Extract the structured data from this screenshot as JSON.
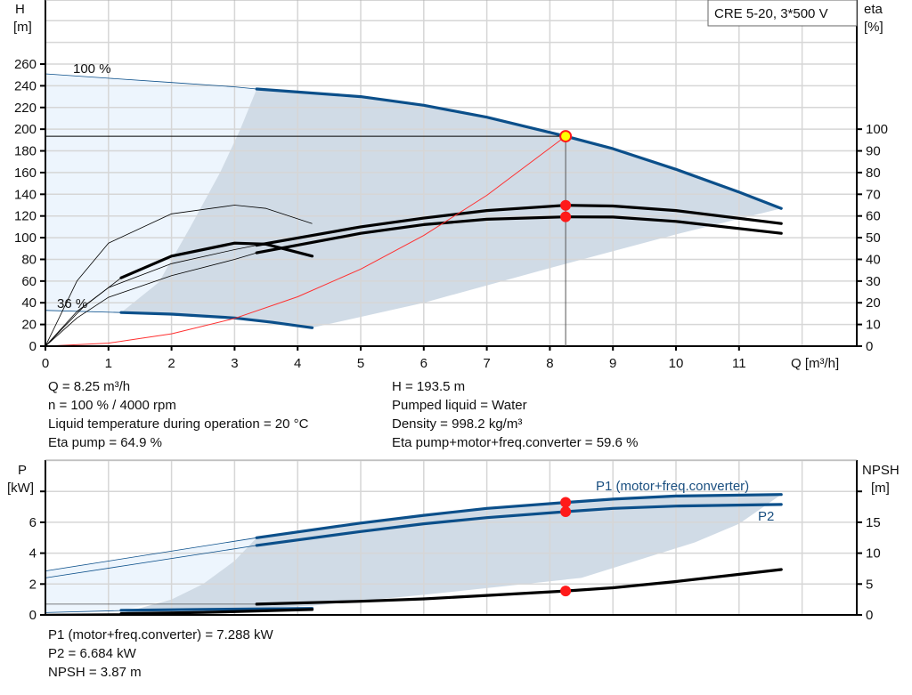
{
  "chart_data": [
    {
      "type": "line",
      "title_box": "CRE 5-20, 3*500 V",
      "xlabel": "Q [m³/h]",
      "ylabel_left": [
        "H",
        "[m]"
      ],
      "ylabel_right": [
        "eta",
        "[%]"
      ],
      "xlim": [
        0,
        12.8
      ],
      "ylim_left": [
        0,
        320
      ],
      "ylim_right": [
        0,
        160
      ],
      "x_ticks": [
        0,
        1,
        2,
        3,
        4,
        5,
        6,
        7,
        8,
        9,
        10,
        11
      ],
      "y_ticks_left": [
        0,
        20,
        40,
        60,
        80,
        100,
        120,
        140,
        160,
        180,
        200,
        220,
        240,
        260
      ],
      "y_ticks_right": [
        0,
        10,
        20,
        30,
        40,
        50,
        60,
        70,
        80,
        90,
        100
      ],
      "grid": true,
      "annotations": [
        "100 %",
        "36 %"
      ],
      "series": [
        {
          "id": "h-100",
          "axis": "left",
          "color": "#0b4f8a",
          "thin": [
            [
              0,
              251
            ],
            [
              1,
              247
            ],
            [
              2,
              243
            ],
            [
              3,
              239
            ],
            [
              3.35,
              237
            ]
          ],
          "thick": [
            [
              3.35,
              237
            ],
            [
              5,
              230
            ],
            [
              6,
              222
            ],
            [
              7,
              211
            ],
            [
              8,
              197
            ],
            [
              8.25,
              193.5
            ],
            [
              9,
              182
            ],
            [
              10,
              163
            ],
            [
              11,
              142
            ],
            [
              11.67,
              127
            ]
          ]
        },
        {
          "id": "h-36",
          "axis": "left",
          "color": "#0b4f8a",
          "thin": [
            [
              0,
              33
            ],
            [
              1.2,
              31
            ]
          ],
          "thick": [
            [
              1.2,
              31
            ],
            [
              2,
              29.5
            ],
            [
              3,
              26
            ],
            [
              3.6,
              22
            ],
            [
              4.23,
              17
            ]
          ]
        },
        {
          "id": "eta-pump-100",
          "axis": "right",
          "color": "#000000",
          "thin": [
            [
              0,
              0
            ],
            [
              0.5,
              16
            ],
            [
              1,
              27
            ],
            [
              2,
              38
            ],
            [
              3,
              44.5
            ],
            [
              3.35,
              46.5
            ]
          ],
          "thick": [
            [
              3.35,
              46.5
            ],
            [
              5,
              55
            ],
            [
              6,
              59
            ],
            [
              7,
              62.5
            ],
            [
              8.25,
              64.9
            ],
            [
              9,
              64.6
            ],
            [
              10,
              62.5
            ],
            [
              11.67,
              56.5
            ]
          ]
        },
        {
          "id": "eta-total-100",
          "axis": "right",
          "color": "#000000",
          "thin": [
            [
              0,
              0
            ],
            [
              0.5,
              13
            ],
            [
              1,
              22.5
            ],
            [
              2,
              32.5
            ],
            [
              3,
              40
            ],
            [
              3.35,
              43
            ]
          ],
          "thick": [
            [
              3.35,
              43
            ],
            [
              5,
              52
            ],
            [
              6,
              56
            ],
            [
              7,
              58.5
            ],
            [
              8.25,
              59.6
            ],
            [
              9,
              59.5
            ],
            [
              10,
              57.5
            ],
            [
              11.67,
              52
            ]
          ]
        },
        {
          "id": "eta-pump-36",
          "axis": "right",
          "color": "#000000",
          "thin": [
            [
              0,
              0
            ],
            [
              0.5,
              30
            ],
            [
              1,
              47.5
            ],
            [
              2,
              61
            ],
            [
              3,
              65
            ],
            [
              3.5,
              63.5
            ],
            [
              4.23,
              56.5
            ]
          ],
          "thick": []
        },
        {
          "id": "eta-total-36",
          "axis": "right",
          "color": "#000000",
          "thin": [
            [
              0,
              0
            ],
            [
              0.6,
              18
            ],
            [
              1.2,
              31.5
            ]
          ],
          "thick": [
            [
              1.2,
              31.5
            ],
            [
              2,
              41.5
            ],
            [
              3,
              47.5
            ],
            [
              3.5,
              47
            ],
            [
              4.23,
              41.5
            ]
          ]
        },
        {
          "id": "system-curve",
          "axis": "left",
          "color": "#ff3030",
          "thin": [
            [
              0,
              0
            ],
            [
              1,
              2.8
            ],
            [
              2,
              11.4
            ],
            [
              3,
              25.6
            ],
            [
              4,
              45.5
            ],
            [
              5,
              71
            ],
            [
              6,
              102
            ],
            [
              7,
              139
            ],
            [
              8.25,
              193.5
            ]
          ],
          "thick": []
        }
      ],
      "operating_point": {
        "Q": 8.25,
        "H": 193.5,
        "eta_pump": 64.9,
        "eta_total": 59.6
      },
      "region_dark": [
        [
          3.35,
          237
        ],
        [
          5,
          230
        ],
        [
          6,
          222
        ],
        [
          7,
          211
        ],
        [
          8,
          197
        ],
        [
          9,
          182
        ],
        [
          10,
          163
        ],
        [
          11,
          142
        ],
        [
          11.67,
          127
        ],
        [
          10,
          103
        ],
        [
          8,
          72
        ],
        [
          6,
          40
        ],
        [
          4.23,
          17
        ],
        [
          3,
          26
        ],
        [
          2,
          29.5
        ],
        [
          1.2,
          31
        ],
        [
          1.8,
          59
        ],
        [
          2.3,
          110
        ],
        [
          2.77,
          160
        ],
        [
          3.09,
          200
        ]
      ],
      "region_light": [
        [
          0,
          251
        ],
        [
          3.35,
          237
        ],
        [
          3.09,
          200
        ],
        [
          2.77,
          160
        ],
        [
          2.3,
          110
        ],
        [
          1.8,
          59
        ],
        [
          1.2,
          31
        ],
        [
          0,
          33
        ]
      ]
    },
    {
      "type": "line",
      "xlim": [
        0,
        12.8
      ],
      "ylabel_left": [
        "P",
        "[kW]"
      ],
      "ylabel_right": [
        "NPSH",
        "[m]"
      ],
      "ylim_left": [
        0,
        10
      ],
      "ylim_right": [
        0,
        25
      ],
      "y_ticks_left": [
        0,
        2,
        4,
        6,
        8
      ],
      "y_tick_labels_left": [
        "0",
        "2",
        "4",
        "6",
        ""
      ],
      "y_ticks_right": [
        0,
        5,
        10,
        15,
        20
      ],
      "y_tick_labels_right": [
        "0",
        "5",
        "10",
        "15",
        ""
      ],
      "grid": true,
      "series": [
        {
          "id": "p1",
          "name": "P1 (motor+freq.converter)",
          "axis": "left",
          "color": "#0b4f8a",
          "thin": [
            [
              0,
              2.85
            ],
            [
              3.35,
              5.0
            ]
          ],
          "thick": [
            [
              3.35,
              5.0
            ],
            [
              5,
              5.95
            ],
            [
              6,
              6.45
            ],
            [
              7,
              6.9
            ],
            [
              8.25,
              7.288
            ],
            [
              9,
              7.5
            ],
            [
              10,
              7.7
            ],
            [
              11.67,
              7.8
            ]
          ]
        },
        {
          "id": "p2",
          "name": "P2",
          "axis": "left",
          "color": "#0b4f8a",
          "thin": [
            [
              0,
              2.4
            ],
            [
              3.35,
              4.5
            ]
          ],
          "thick": [
            [
              3.35,
              4.5
            ],
            [
              5,
              5.4
            ],
            [
              6,
              5.9
            ],
            [
              7,
              6.3
            ],
            [
              8.25,
              6.684
            ],
            [
              9,
              6.9
            ],
            [
              10,
              7.05
            ],
            [
              11.67,
              7.15
            ]
          ]
        },
        {
          "id": "p1-36",
          "axis": "left",
          "color": "#0b4f8a",
          "thin": [
            [
              0,
              0.15
            ],
            [
              1.2,
              0.28
            ]
          ],
          "thick": [
            [
              1.2,
              0.3
            ],
            [
              2.5,
              0.36
            ],
            [
              4.23,
              0.42
            ]
          ]
        },
        {
          "id": "npsh-36",
          "axis": "left",
          "color": "#000000",
          "thin": [
            [
              0,
              0.05
            ],
            [
              1.2,
              0.08
            ]
          ],
          "thick": [
            [
              1.2,
              0.08
            ],
            [
              2.5,
              0.16
            ],
            [
              4.23,
              0.35
            ]
          ]
        },
        {
          "id": "npsh-ref",
          "axis": "right",
          "color": "#555555",
          "thin": [
            [
              0,
              1.75
            ],
            [
              3.35,
              1.75
            ]
          ],
          "thick": []
        },
        {
          "id": "npsh",
          "axis": "right",
          "color": "#000000",
          "thin": [],
          "thick": [
            [
              3.35,
              1.75
            ],
            [
              5,
              2.2
            ],
            [
              6,
              2.6
            ],
            [
              7,
              3.15
            ],
            [
              8.25,
              3.87
            ],
            [
              9,
              4.4
            ],
            [
              10,
              5.4
            ],
            [
              11.67,
              7.35
            ]
          ]
        }
      ],
      "operating_point": {
        "Q": 8.25,
        "P1": 7.288,
        "P2": 6.684,
        "NPSH": 3.87
      },
      "region_dark": [
        [
          3.35,
          5.0
        ],
        [
          5,
          5.95
        ],
        [
          6,
          6.45
        ],
        [
          7,
          6.9
        ],
        [
          8.25,
          7.288
        ],
        [
          9,
          7.5
        ],
        [
          10,
          7.7
        ],
        [
          11.67,
          7.8
        ],
        [
          11,
          5.9
        ],
        [
          10.3,
          4.7
        ],
        [
          8.5,
          2.4
        ],
        [
          6,
          1.3
        ],
        [
          4.23,
          0.6
        ],
        [
          1.2,
          0.1
        ],
        [
          2,
          1.0
        ],
        [
          2.5,
          2.0
        ],
        [
          3,
          3.5
        ]
      ],
      "region_light": [
        [
          0,
          2.85
        ],
        [
          3.35,
          5.0
        ],
        [
          3,
          3.5
        ],
        [
          2.5,
          2.0
        ],
        [
          2,
          1.0
        ],
        [
          1.2,
          0.3
        ],
        [
          0,
          0.15
        ]
      ]
    }
  ],
  "info_top": {
    "left": [
      "Q = 8.25 m³/h",
      "n = 100 % / 4000 rpm",
      "Liquid temperature during operation = 20 °C",
      "Eta pump = 64.9 %"
    ],
    "right": [
      "H = 193.5 m",
      "Pumped liquid = Water",
      "Density = 998.2 kg/m³",
      "Eta pump+motor+freq.converter = 59.6 %"
    ]
  },
  "info_bottom": [
    "P1 (motor+freq.converter) = 7.288 kW",
    "P2 = 6.684 kW",
    "NPSH = 3.87 m"
  ],
  "colors": {
    "curve_blue": "#0b4f8a",
    "region_dark": "#d0dbe6",
    "region_light": "#edf5fd",
    "grid": "#d6d6d6",
    "point": "#ff1a1a",
    "op_point_fill": "#ffff00"
  }
}
